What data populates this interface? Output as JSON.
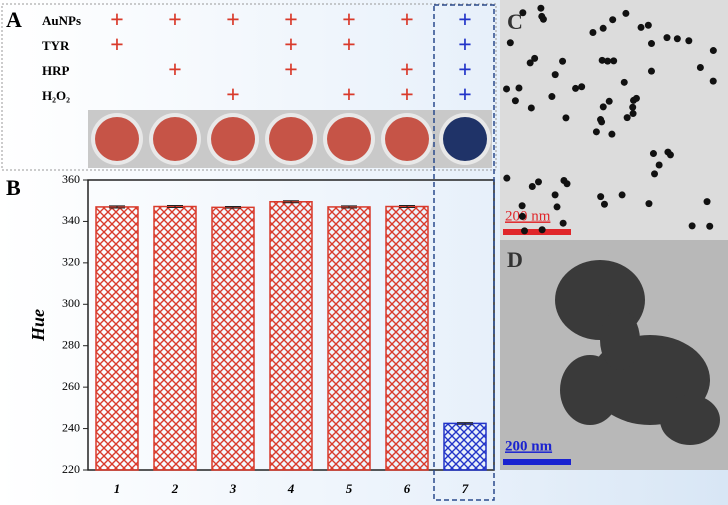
{
  "panel_a": {
    "label": "A",
    "rows": [
      {
        "label": "AuNPs",
        "marks": [
          "+",
          "+",
          "+",
          "+",
          "+",
          "+",
          "+"
        ]
      },
      {
        "label": "TYR",
        "marks": [
          "+",
          null,
          null,
          "+",
          "+",
          null,
          "+"
        ]
      },
      {
        "label": "HRP",
        "marks": [
          null,
          "+",
          null,
          "+",
          null,
          "+",
          "+"
        ]
      },
      {
        "label": "H₂O₂",
        "marks": [
          null,
          null,
          "+",
          null,
          "+",
          "+",
          "+"
        ]
      }
    ]
  },
  "panel_c": {
    "label": "C",
    "scale_bar": "200 nm"
  },
  "panel_d": {
    "label": "D",
    "scale_bar": "200 nm"
  },
  "chart_data": {
    "type": "bar",
    "label": "B",
    "y_label": "Hue",
    "categories": [
      "1",
      "2",
      "3",
      "4",
      "5",
      "6",
      "7"
    ],
    "series": [
      {
        "values": [
          347,
          347.2,
          346.8,
          349.5,
          347,
          347.2,
          242.5
        ],
        "errors": [
          0.5,
          0.5,
          0.4,
          0.5,
          0.5,
          0.5,
          0.4
        ],
        "colors": [
          "#d93a2b",
          "#d93a2b",
          "#d93a2b",
          "#d93a2b",
          "#d93a2b",
          "#d93a2b",
          "#2234c8"
        ]
      }
    ],
    "ylim": [
      220,
      360
    ],
    "yticks": [
      220,
      240,
      260,
      280,
      300,
      320,
      340,
      360
    ],
    "grid": false
  }
}
